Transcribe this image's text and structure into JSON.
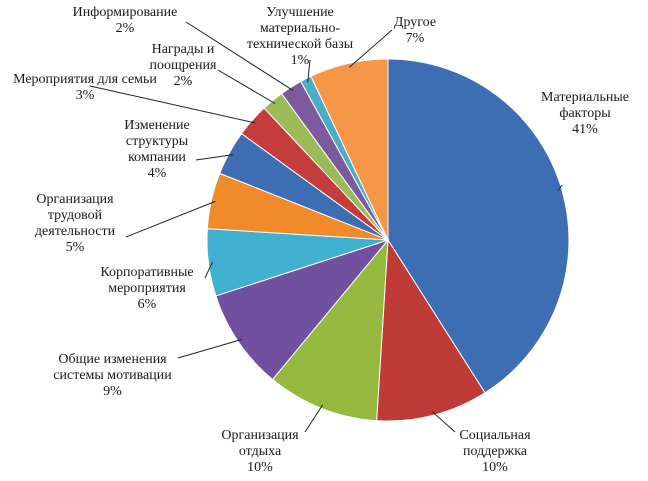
{
  "chart_data": {
    "type": "pie",
    "categories": [
      "Материальные факторы",
      "Социальная поддержка",
      "Организация отдыха",
      "Общие изменения системы мотивации",
      "Корпоративные мероприятия",
      "Организация трудовой деятельности",
      "Изменение структуры компании",
      "Мероприятия для семьи",
      "Награды и поощрения",
      "Информирование",
      "Улучшение материально-технической базы",
      "Другое"
    ],
    "values": [
      41,
      10,
      10,
      9,
      6,
      5,
      4,
      3,
      2,
      2,
      1,
      7
    ],
    "value_labels": [
      "41%",
      "10%",
      "10%",
      "9%",
      "6%",
      "5%",
      "4%",
      "3%",
      "2%",
      "2%",
      "1%",
      "7%"
    ],
    "colors": [
      "#3d6eb4",
      "#be3b37",
      "#94b93e",
      "#7150a0",
      "#3fb0cf",
      "#f08a2b",
      "#3d6eb4",
      "#c43c3c",
      "#9bbb59",
      "#7d5aa0",
      "#4bacc6",
      "#f79646"
    ]
  }
}
